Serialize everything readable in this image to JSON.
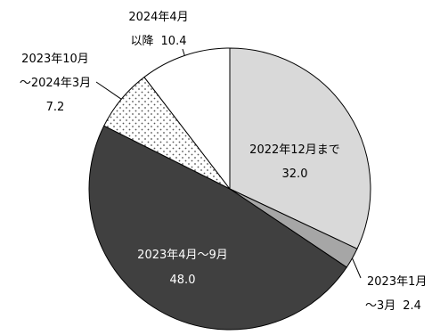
{
  "chart_data": {
    "type": "pie",
    "title": "",
    "slices": [
      {
        "name": "2022年12月まで",
        "value": 32.0,
        "label": "2022年12月まで",
        "value_label": "32.0",
        "fill": "#d9d9d9",
        "pattern": "none",
        "label_position": "inside"
      },
      {
        "name": "2023年1月～3月",
        "value": 2.4,
        "label_line1": "2023年1月",
        "label_line2": "～3月",
        "value_label": "2.4",
        "fill": "#a6a6a6",
        "pattern": "none",
        "label_position": "outside"
      },
      {
        "name": "2023年4月～9月",
        "value": 48.0,
        "label": "2023年4月～9月",
        "value_label": "48.0",
        "fill": "#404040",
        "pattern": "none",
        "label_position": "inside"
      },
      {
        "name": "2023年10月～2024年3月",
        "value": 7.2,
        "label_line1": "2023年10月",
        "label_line2": "～2024年3月",
        "value_label": "7.2",
        "fill": "#ffffff",
        "pattern": "dots",
        "label_position": "outside"
      },
      {
        "name": "2024年4月以降",
        "value": 10.4,
        "label_line1": "2024年4月",
        "label_line2": "以降",
        "value_label": "10.4",
        "fill": "#ffffff",
        "pattern": "none",
        "label_position": "outside"
      }
    ],
    "start_angle_deg": 0,
    "direction": "clockwise",
    "legend": "none"
  }
}
